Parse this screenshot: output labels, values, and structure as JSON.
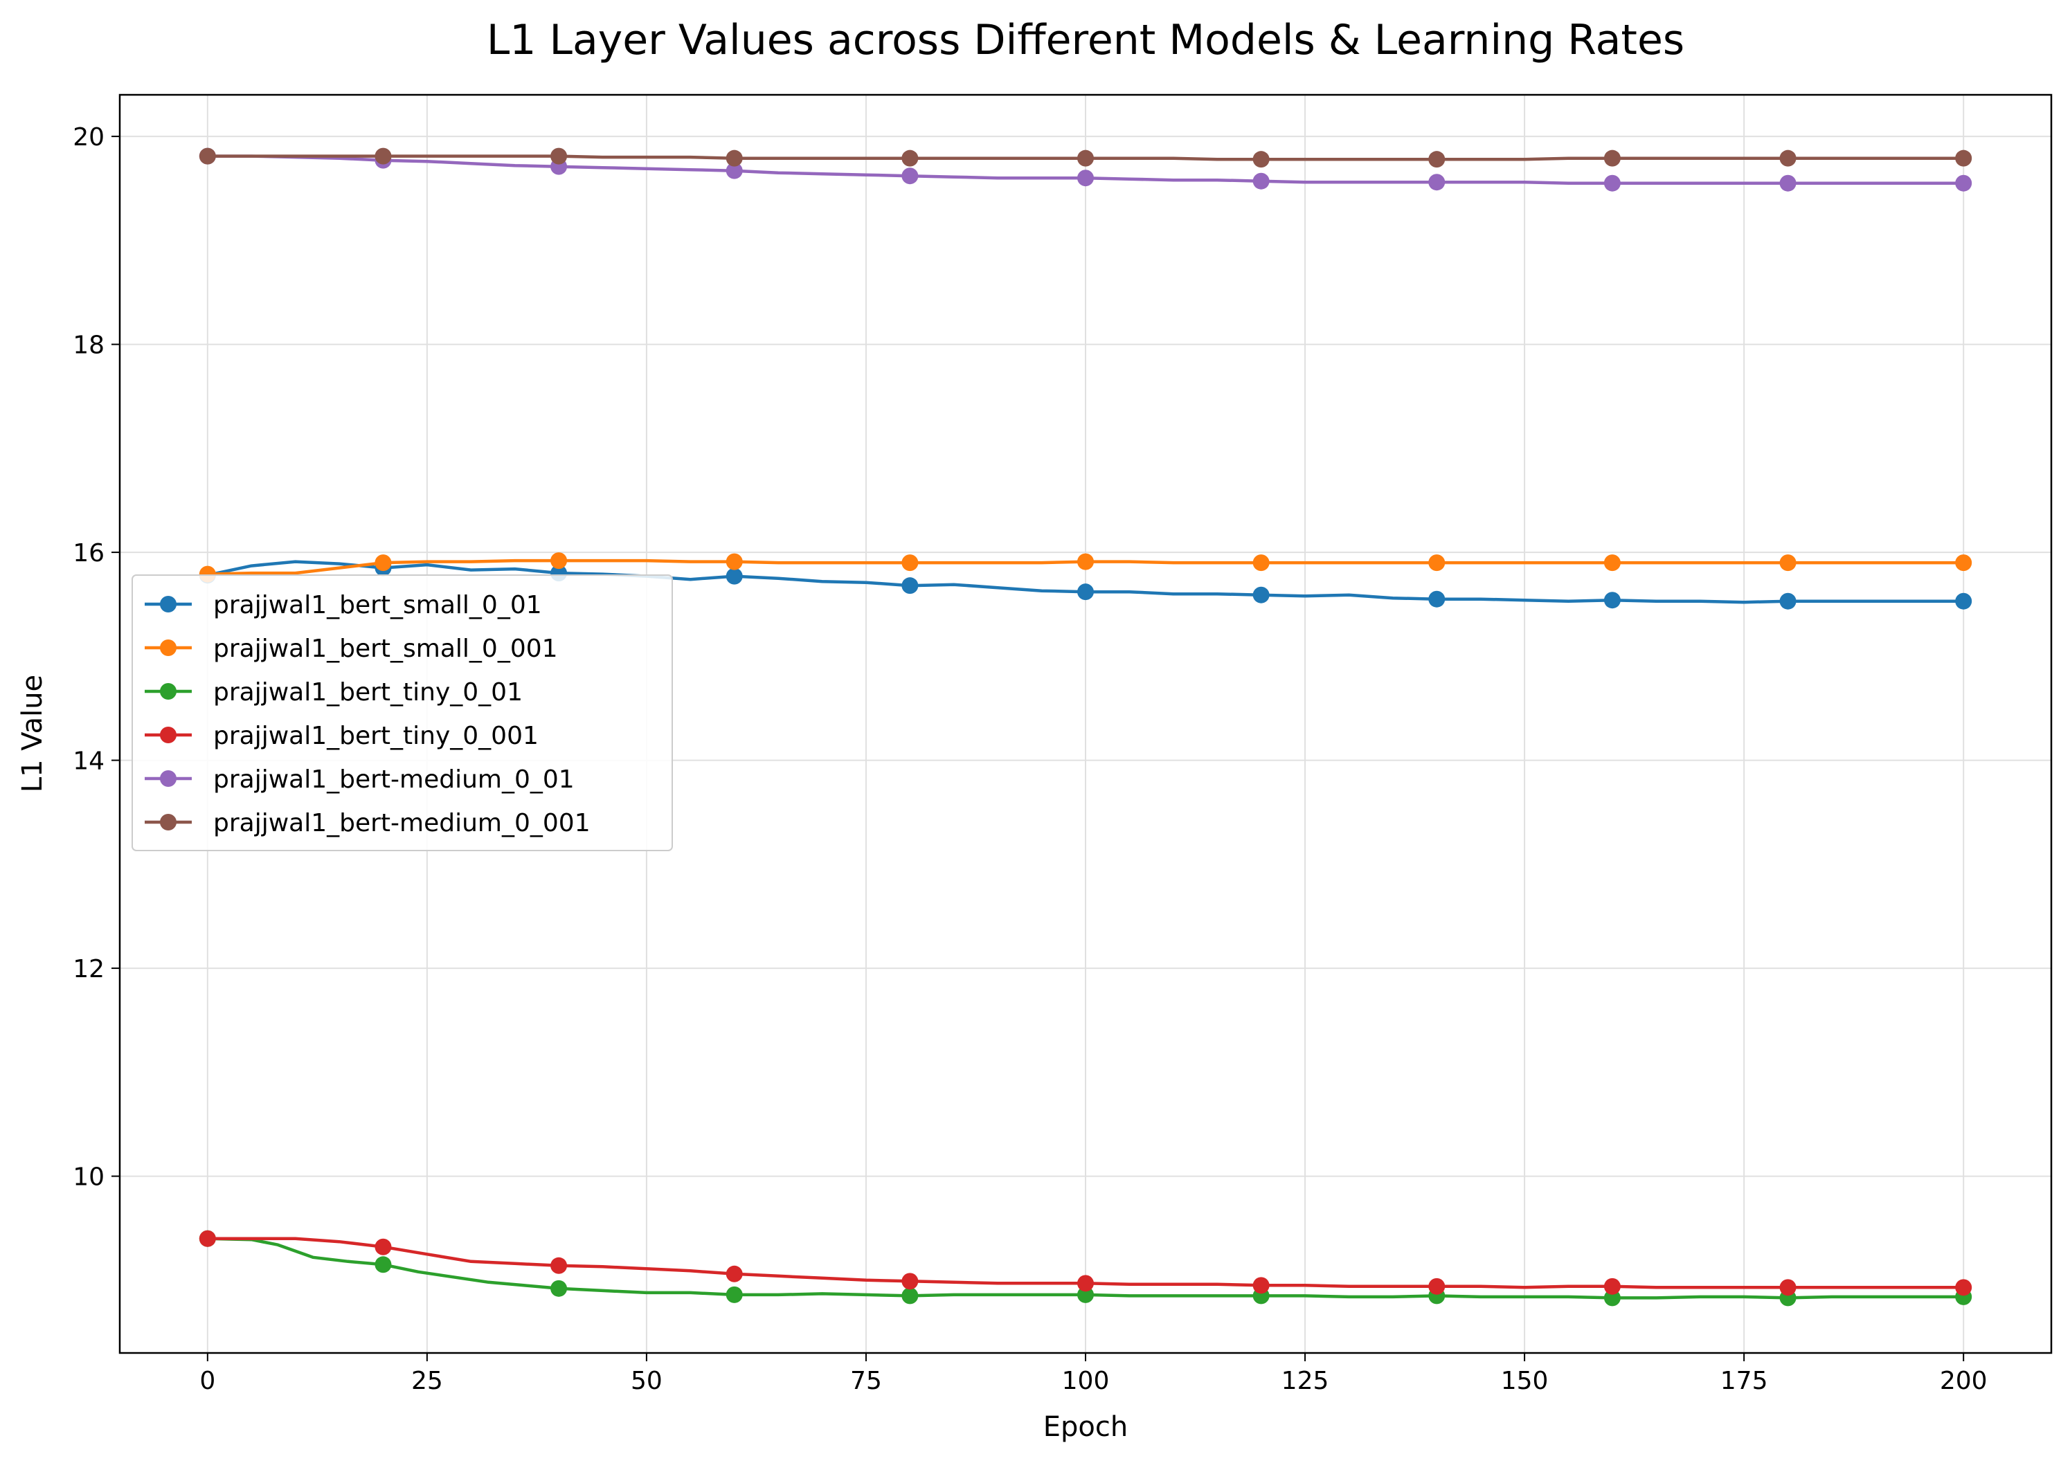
{
  "chart_data": {
    "type": "line",
    "title": "L1 Layer Values across Different Models & Learning Rates",
    "xlabel": "Epoch",
    "ylabel": "L1 Value",
    "xlim": [
      -10,
      210
    ],
    "ylim": [
      8.3,
      20.4
    ],
    "xticks": [
      0,
      25,
      50,
      75,
      100,
      125,
      150,
      175,
      200
    ],
    "yticks": [
      10,
      12,
      14,
      16,
      18,
      20
    ],
    "grid": true,
    "legend_position": "center-left",
    "marker_epochs": [
      0,
      20,
      40,
      60,
      80,
      100,
      120,
      140,
      160,
      180,
      200
    ],
    "series": [
      {
        "name": "prajjwal1_bert_small_0_01",
        "color": "#1f77b4",
        "x": [
          0,
          5,
          10,
          15,
          20,
          25,
          30,
          35,
          40,
          45,
          50,
          55,
          60,
          65,
          70,
          75,
          80,
          85,
          90,
          95,
          100,
          105,
          110,
          115,
          120,
          125,
          130,
          135,
          140,
          145,
          150,
          155,
          160,
          165,
          170,
          175,
          180,
          185,
          190,
          195,
          200
        ],
        "y": [
          15.78,
          15.87,
          15.91,
          15.89,
          15.85,
          15.88,
          15.83,
          15.84,
          15.8,
          15.79,
          15.77,
          15.74,
          15.77,
          15.75,
          15.72,
          15.71,
          15.68,
          15.69,
          15.66,
          15.63,
          15.62,
          15.62,
          15.6,
          15.6,
          15.59,
          15.58,
          15.59,
          15.56,
          15.55,
          15.55,
          15.54,
          15.53,
          15.54,
          15.53,
          15.53,
          15.52,
          15.53,
          15.53,
          15.53,
          15.53,
          15.53
        ]
      },
      {
        "name": "prajjwal1_bert_small_0_001",
        "color": "#ff7f0e",
        "x": [
          0,
          5,
          10,
          15,
          20,
          25,
          30,
          35,
          40,
          45,
          50,
          55,
          60,
          65,
          70,
          75,
          80,
          85,
          90,
          95,
          100,
          105,
          110,
          115,
          120,
          125,
          130,
          135,
          140,
          145,
          150,
          155,
          160,
          165,
          170,
          175,
          180,
          185,
          190,
          195,
          200
        ],
        "y": [
          15.79,
          15.8,
          15.8,
          15.85,
          15.9,
          15.91,
          15.91,
          15.92,
          15.92,
          15.92,
          15.92,
          15.91,
          15.91,
          15.9,
          15.9,
          15.9,
          15.9,
          15.9,
          15.9,
          15.9,
          15.91,
          15.91,
          15.9,
          15.9,
          15.9,
          15.9,
          15.9,
          15.9,
          15.9,
          15.9,
          15.9,
          15.9,
          15.9,
          15.9,
          15.9,
          15.9,
          15.9,
          15.9,
          15.9,
          15.9,
          15.9
        ]
      },
      {
        "name": "prajjwal1_bert_tiny_0_01",
        "color": "#2ca02c",
        "x": [
          0,
          5,
          8,
          12,
          16,
          20,
          24,
          28,
          32,
          36,
          40,
          45,
          50,
          55,
          60,
          65,
          70,
          75,
          80,
          85,
          90,
          95,
          100,
          105,
          110,
          115,
          120,
          125,
          130,
          135,
          140,
          145,
          150,
          155,
          160,
          165,
          170,
          175,
          180,
          185,
          190,
          195,
          200
        ],
        "y": [
          9.4,
          9.39,
          9.34,
          9.22,
          9.18,
          9.15,
          9.08,
          9.03,
          8.98,
          8.95,
          8.92,
          8.9,
          8.88,
          8.88,
          8.86,
          8.86,
          8.87,
          8.86,
          8.85,
          8.86,
          8.86,
          8.86,
          8.86,
          8.85,
          8.85,
          8.85,
          8.85,
          8.85,
          8.84,
          8.84,
          8.85,
          8.84,
          8.84,
          8.84,
          8.83,
          8.83,
          8.84,
          8.84,
          8.83,
          8.84,
          8.84,
          8.84,
          8.84
        ]
      },
      {
        "name": "prajjwal1_bert_tiny_0_001",
        "color": "#d62728",
        "x": [
          0,
          5,
          10,
          15,
          20,
          25,
          30,
          35,
          40,
          45,
          50,
          55,
          60,
          65,
          70,
          75,
          80,
          85,
          90,
          95,
          100,
          105,
          110,
          115,
          120,
          125,
          130,
          135,
          140,
          145,
          150,
          155,
          160,
          165,
          170,
          175,
          180,
          185,
          190,
          195,
          200
        ],
        "y": [
          9.4,
          9.4,
          9.4,
          9.37,
          9.32,
          9.25,
          9.18,
          9.16,
          9.14,
          9.13,
          9.11,
          9.09,
          9.06,
          9.04,
          9.02,
          9.0,
          8.99,
          8.98,
          8.97,
          8.97,
          8.97,
          8.96,
          8.96,
          8.96,
          8.95,
          8.95,
          8.94,
          8.94,
          8.94,
          8.94,
          8.93,
          8.94,
          8.94,
          8.93,
          8.93,
          8.93,
          8.93,
          8.93,
          8.93,
          8.93,
          8.93
        ]
      },
      {
        "name": "prajjwal1_bert-medium_0_01",
        "color": "#9467bd",
        "x": [
          0,
          5,
          10,
          15,
          20,
          25,
          30,
          35,
          40,
          45,
          50,
          55,
          60,
          65,
          70,
          75,
          80,
          85,
          90,
          95,
          100,
          105,
          110,
          115,
          120,
          125,
          130,
          135,
          140,
          145,
          150,
          155,
          160,
          165,
          170,
          175,
          180,
          185,
          190,
          195,
          200
        ],
        "y": [
          19.81,
          19.81,
          19.8,
          19.79,
          19.77,
          19.76,
          19.74,
          19.72,
          19.71,
          19.7,
          19.69,
          19.68,
          19.67,
          19.65,
          19.64,
          19.63,
          19.62,
          19.61,
          19.6,
          19.6,
          19.6,
          19.59,
          19.58,
          19.58,
          19.57,
          19.56,
          19.56,
          19.56,
          19.56,
          19.56,
          19.56,
          19.55,
          19.55,
          19.55,
          19.55,
          19.55,
          19.55,
          19.55,
          19.55,
          19.55,
          19.55
        ]
      },
      {
        "name": "prajjwal1_bert-medium_0_001",
        "color": "#8c564b",
        "x": [
          0,
          5,
          10,
          15,
          20,
          25,
          30,
          35,
          40,
          45,
          50,
          55,
          60,
          65,
          70,
          75,
          80,
          85,
          90,
          95,
          100,
          105,
          110,
          115,
          120,
          125,
          130,
          135,
          140,
          145,
          150,
          155,
          160,
          165,
          170,
          175,
          180,
          185,
          190,
          195,
          200
        ],
        "y": [
          19.81,
          19.81,
          19.81,
          19.81,
          19.81,
          19.81,
          19.81,
          19.81,
          19.81,
          19.8,
          19.8,
          19.8,
          19.79,
          19.79,
          19.79,
          19.79,
          19.79,
          19.79,
          19.79,
          19.79,
          19.79,
          19.79,
          19.79,
          19.78,
          19.78,
          19.78,
          19.78,
          19.78,
          19.78,
          19.78,
          19.78,
          19.79,
          19.79,
          19.79,
          19.79,
          19.79,
          19.79,
          19.79,
          19.79,
          19.79,
          19.79
        ]
      }
    ]
  }
}
